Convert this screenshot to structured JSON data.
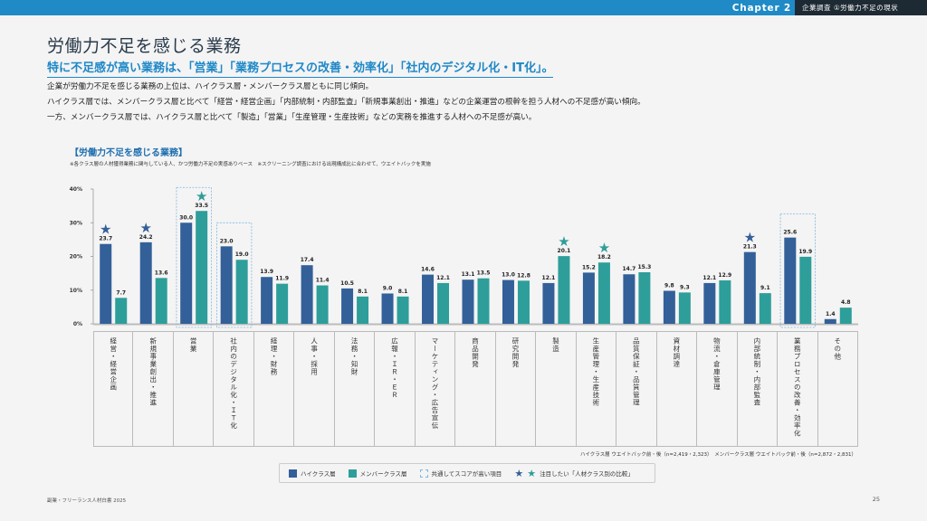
{
  "header": {
    "chapter": "Chapter 2",
    "section": "企業調査 ①労働力不足の現状",
    "colors": {
      "bar": "#1f8ac6",
      "dark": "#1e2a33"
    }
  },
  "title": "労働力不足を感じる業務",
  "subtitle": "特に不足感が高い業務は、「営業」「業務プロセスの改善・効率化」「社内のデジタル化・IT化」。",
  "body_lines": [
    "企業が労働力不足を感じる業務の上位は、ハイクラス層・メンバークラス層ともに同じ傾向。",
    "ハイクラス層では、メンバークラス層と比べて「経営・経営企画」「内部統制・内部監査」「新規事業創出・推進」などの企業運営の根幹を担う人材への不足感が高い傾向。",
    "一方、メンバークラス層では、ハイクラス層と比べて「製造」「営業」「生産管理・生産技術」などの実務を推進する人材への不足感が高い。"
  ],
  "chart_title": "【労働力不足を感じる業務】",
  "chart_note": "※各クラス層の人材獲得業務に関与している人、かつ労働力不足の実感ありベース　※スクリーニング調査における出現構成比に合わせて、ウエイトバックを実施",
  "sample_note": "ハイクラス層 ウエイトバック前・後（n=2,419・2,323）　メンバークラス層 ウエイトバック前・後（n=2,872・2,831）",
  "legend": {
    "high": "ハイクラス層",
    "member": "メンバークラス層",
    "common": "共通してスコアが高い項目",
    "focus": "注目したい「人材クラス別の比較」"
  },
  "footer": {
    "left": "副業・フリーランス人材白書 2025",
    "page": "25"
  },
  "chart_data": {
    "type": "bar",
    "title": "【労働力不足を感じる業務】",
    "xlabel": "",
    "ylabel": "",
    "ylim": [
      0,
      40
    ],
    "yticks": [
      "0%",
      "10%",
      "20%",
      "30%",
      "40%"
    ],
    "ytick_values": [
      0,
      10,
      20,
      30,
      40
    ],
    "grid": false,
    "legend_position": "bottom",
    "colors": {
      "high": "#336099",
      "member": "#2e9e9a",
      "star_high": "#336099",
      "star_member": "#2e9e9a",
      "common_box": "#7fb8e0"
    },
    "categories": [
      "経営・経営企画",
      "新規事業創出・推進",
      "営業",
      "社内のデジタル化・ＩＴ化",
      "経理・財務",
      "人事・採用",
      "法務・知財",
      "広報・ＩＲ・ＥＲ",
      "マーケティング・広告宣伝",
      "商品開発",
      "研究開発",
      "製造",
      "生産管理・生産技術",
      "品質保証・品質管理",
      "資材調達",
      "物流・倉庫管理",
      "内部統制・内部監査",
      "業務プロセスの改善・効率化",
      "その他"
    ],
    "series": [
      {
        "name": "ハイクラス層",
        "values": [
          23.7,
          24.2,
          30.0,
          23.0,
          13.9,
          17.4,
          10.5,
          9.0,
          14.6,
          13.1,
          13.0,
          12.1,
          15.2,
          14.7,
          9.8,
          12.1,
          21.3,
          25.6,
          1.4
        ]
      },
      {
        "name": "メンバークラス層",
        "values": [
          7.7,
          13.6,
          33.5,
          19.0,
          11.9,
          11.4,
          8.1,
          8.1,
          12.1,
          13.5,
          12.8,
          20.1,
          18.2,
          15.3,
          9.3,
          12.9,
          9.1,
          19.9,
          4.8
        ]
      }
    ],
    "value_labels": {
      "high": [
        "23.7",
        "24.2",
        "30.0",
        "23.0",
        "13.9",
        "17.4",
        "10.5",
        "9.0",
        "14.6",
        "13.1",
        "13.0",
        "12.1",
        "15.2",
        "14.7",
        "9.8",
        "12.1",
        "21.3",
        "25.6",
        "1.4"
      ],
      "member": [
        "7.7",
        "13.6",
        "33.5",
        "19.0",
        "11.9",
        "11.4",
        "8.1",
        "8.1",
        "12.1",
        "13.5",
        "12.8",
        "20.1",
        "18.2",
        "15.3",
        "9.3",
        "12.9",
        "9.1",
        "19.9",
        "4.8"
      ]
    },
    "common_high_items": [
      2,
      3,
      17
    ],
    "stars": [
      {
        "category": 0,
        "series": "high"
      },
      {
        "category": 1,
        "series": "high"
      },
      {
        "category": 2,
        "series": "member"
      },
      {
        "category": 11,
        "series": "member"
      },
      {
        "category": 12,
        "series": "member"
      },
      {
        "category": 16,
        "series": "high"
      }
    ]
  }
}
